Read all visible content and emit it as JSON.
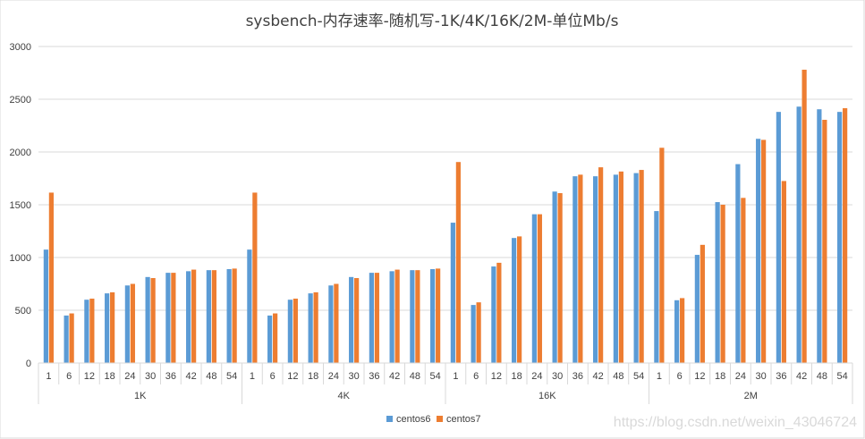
{
  "chart_data": {
    "type": "bar",
    "title": "sysbench-内存速率-随机写-1K/4K/16K/2M-单位Mb/s",
    "xlabel": "",
    "ylabel": "",
    "ylim": [
      0,
      3000
    ],
    "yticks": [
      0,
      500,
      1000,
      1500,
      2000,
      2500,
      3000
    ],
    "grid": true,
    "legend_position": "bottom",
    "groups": [
      "1K",
      "4K",
      "16K",
      "2M"
    ],
    "categories": [
      "1",
      "6",
      "12",
      "18",
      "24",
      "30",
      "36",
      "42",
      "48",
      "54"
    ],
    "series": [
      {
        "name": "centos6",
        "color": "#5b9bd5",
        "values": [
          [
            1075,
            450,
            600,
            660,
            735,
            815,
            855,
            870,
            880,
            890
          ],
          [
            1075,
            450,
            600,
            660,
            735,
            815,
            855,
            870,
            880,
            890
          ],
          [
            1330,
            550,
            915,
            1185,
            1410,
            1625,
            1770,
            1770,
            1785,
            1800
          ],
          [
            1440,
            595,
            1025,
            1525,
            1885,
            2125,
            2380,
            2430,
            2405,
            2380
          ]
        ]
      },
      {
        "name": "centos7",
        "color": "#ed7d31",
        "values": [
          [
            1615,
            470,
            610,
            670,
            750,
            805,
            855,
            885,
            880,
            895
          ],
          [
            1615,
            470,
            610,
            670,
            750,
            805,
            855,
            885,
            880,
            895
          ],
          [
            1905,
            575,
            950,
            1200,
            1410,
            1610,
            1785,
            1855,
            1815,
            1830
          ],
          [
            2040,
            615,
            1120,
            1500,
            1565,
            2115,
            1725,
            2780,
            2305,
            2415
          ]
        ]
      }
    ]
  },
  "watermark": "https://blog.csdn.net/weixin_43046724"
}
